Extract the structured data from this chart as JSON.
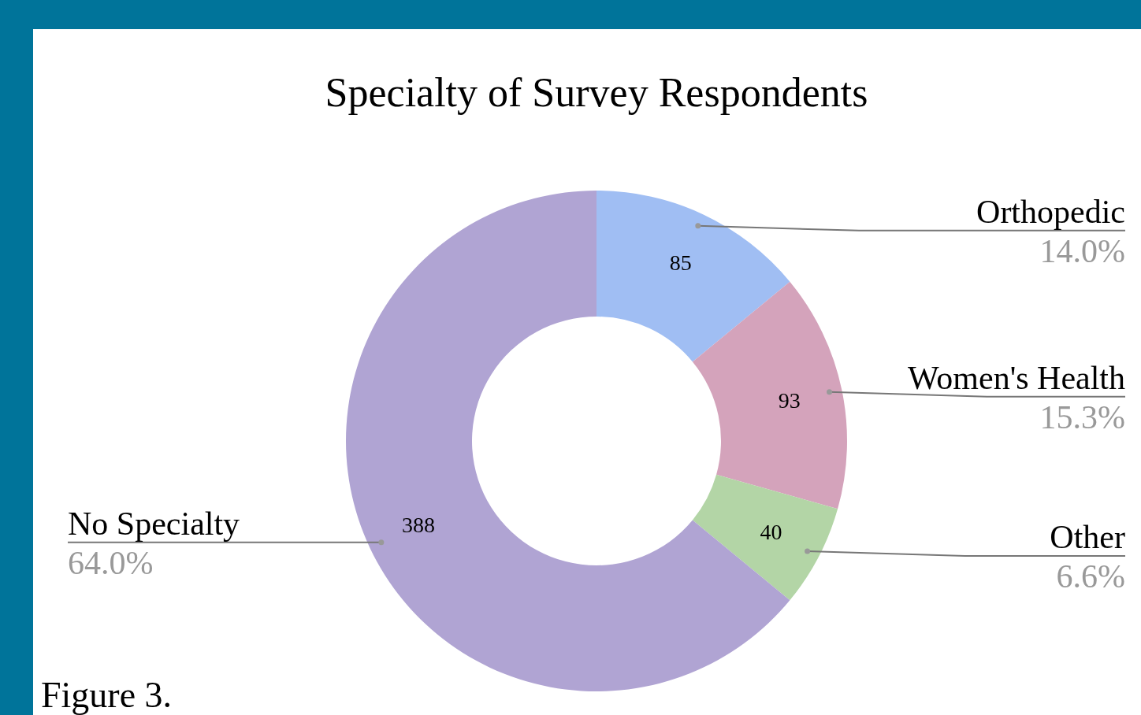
{
  "chart_data": {
    "type": "donut",
    "title": "Specialty of Survey Respondents",
    "categories": [
      "Orthopedic",
      "Women's Health",
      "Other",
      "No Specialty"
    ],
    "values": [
      85,
      93,
      40,
      388
    ],
    "colors": [
      "#a0bef3",
      "#d4a3bb",
      "#b3d5a6",
      "#b0a4d3"
    ],
    "data_labels": true,
    "annotations": [
      "14.0%",
      "15.3%",
      "6.6%",
      "64.0%",
      "Figure 3."
    ]
  }
}
